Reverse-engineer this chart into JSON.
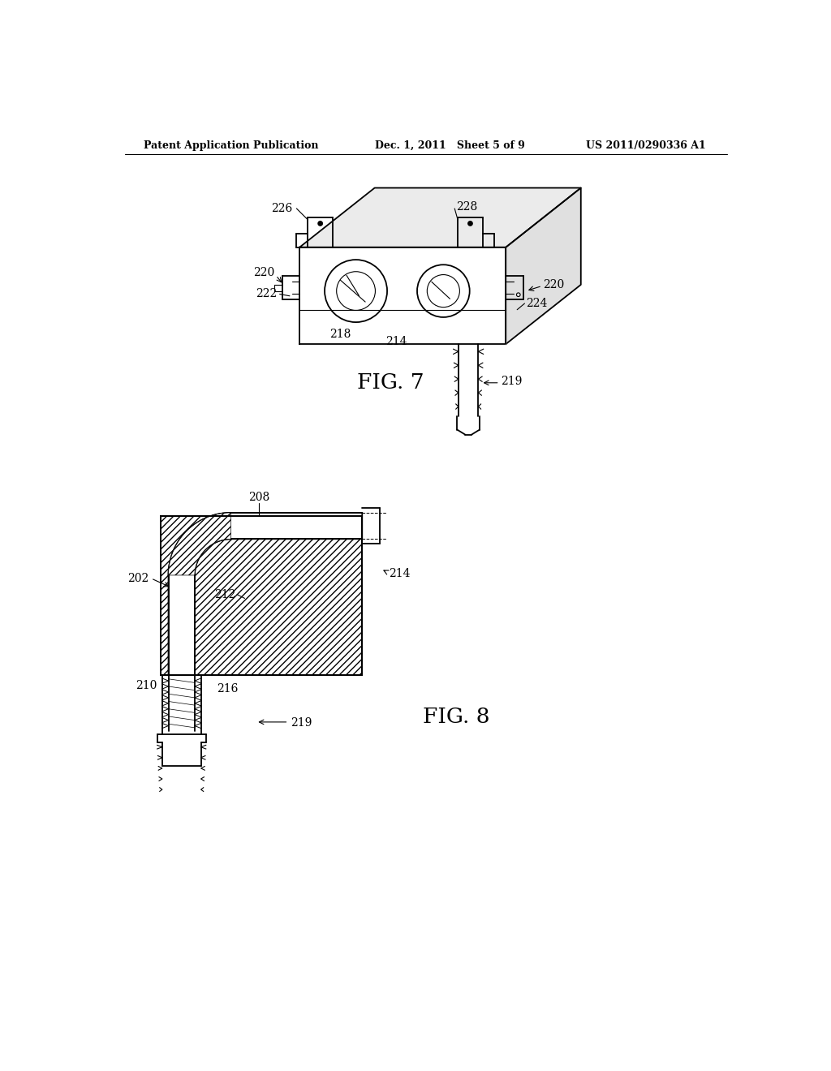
{
  "bg_color": "#ffffff",
  "line_color": "#000000",
  "header_left": "Patent Application Publication",
  "header_mid": "Dec. 1, 2011   Sheet 5 of 9",
  "header_right": "US 2011/0290336 A1",
  "fig7_label": "FIG. 7",
  "fig8_label": "FIG. 8"
}
